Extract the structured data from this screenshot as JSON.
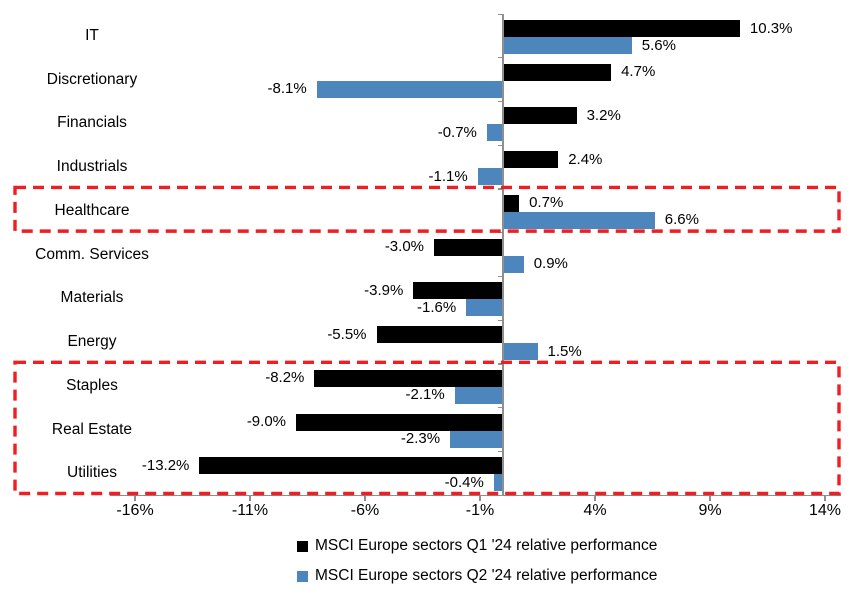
{
  "chart_data": {
    "type": "bar",
    "orientation": "horizontal",
    "title": "",
    "xlabel": "",
    "ylabel": "",
    "categories": [
      "IT",
      "Discretionary",
      "Financials",
      "Industrials",
      "Healthcare",
      "Comm. Services",
      "Materials",
      "Energy",
      "Staples",
      "Real Estate",
      "Utilities"
    ],
    "series": [
      {
        "name": "MSCI Europe sectors Q1 '24 relative performance",
        "color": "#000000",
        "values": [
          10.3,
          4.7,
          3.2,
          2.4,
          0.7,
          -3.0,
          -3.9,
          -5.5,
          -8.2,
          -9.0,
          -13.2
        ],
        "labels": [
          "10.3%",
          "4.7%",
          "3.2%",
          "2.4%",
          "0.7%",
          "-3.0%",
          "-3.9%",
          "-5.5%",
          "-8.2%",
          "-9.0%",
          "-13.2%"
        ]
      },
      {
        "name": "MSCI Europe sectors Q2 '24 relative performance",
        "color": "#4D86BC",
        "values": [
          5.6,
          -8.1,
          -0.7,
          -1.1,
          6.6,
          0.9,
          -1.6,
          1.5,
          -2.1,
          -2.3,
          -0.4
        ],
        "labels": [
          "5.6%",
          "-8.1%",
          "-0.7%",
          "-1.1%",
          "6.6%",
          "0.9%",
          "-1.6%",
          "1.5%",
          "-2.1%",
          "-2.3%",
          "-0.4%"
        ]
      }
    ],
    "x_tick_labels": [
      "-16%",
      "-11%",
      "-6%",
      "-1%",
      "4%",
      "9%",
      "14%"
    ],
    "x_tick_values": [
      -16,
      -11,
      -6,
      -1,
      4,
      9,
      14
    ],
    "axis_range": [
      -17.1,
      14.7
    ],
    "grid": false,
    "data_label_position": "outside-end",
    "legend_position": "bottom",
    "highlights": [
      {
        "name": "healthcare-box",
        "categories": [
          "Healthcare"
        ],
        "style": "dashed-rectangle"
      },
      {
        "name": "defensives-box",
        "categories": [
          "Staples",
          "Real Estate",
          "Utilities"
        ],
        "style": "dashed-rectangle"
      }
    ],
    "highlight_color": "#F01D23",
    "axis_color": "#8F8F8F"
  }
}
